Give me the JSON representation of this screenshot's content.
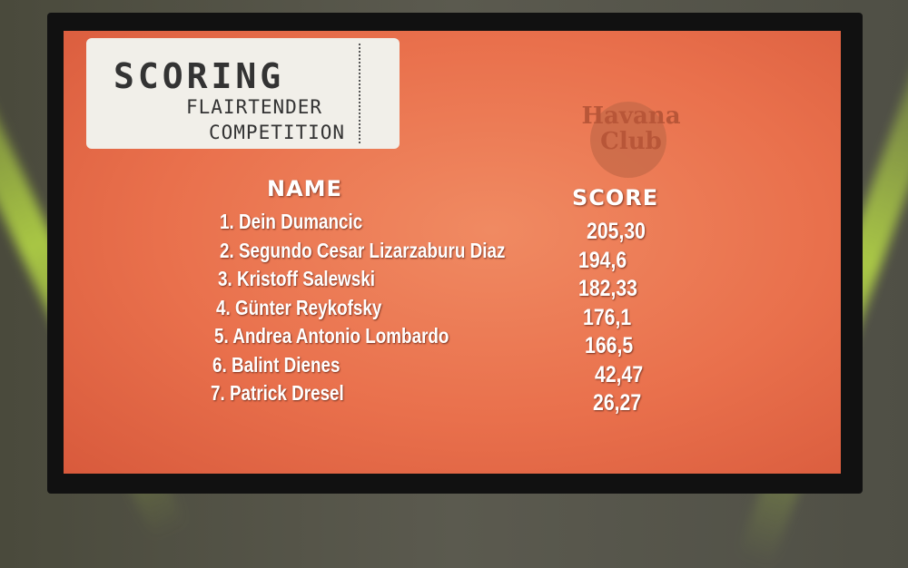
{
  "title": {
    "line1": "SCORING",
    "line2": "FLAIRTENDER",
    "line3": "COMPETITION"
  },
  "logo": {
    "text": "Havana Club"
  },
  "table": {
    "name_header": "NAME",
    "score_header": "SCORE",
    "rows": [
      {
        "rank": "1.",
        "name": "Dein Dumancic",
        "score": "205,30"
      },
      {
        "rank": "2.",
        "name": "Segundo Cesar Lizarzaburu Diaz",
        "score": "194,6"
      },
      {
        "rank": "3.",
        "name": "Kristoff Salewski",
        "score": "182,33"
      },
      {
        "rank": "4.",
        "name": "Günter Reykofsky",
        "score": "176,1"
      },
      {
        "rank": "5.",
        "name": "Andrea Antonio Lombardo",
        "score": "166,5"
      },
      {
        "rank": "6.",
        "name": "Balint Dienes",
        "score": "42,47"
      },
      {
        "rank": "7.",
        "name": "Patrick Dresel",
        "score": "26,27"
      }
    ]
  },
  "colors": {
    "screen": "#e9704c",
    "text": "#ffffff",
    "ticket": "#f1efe9"
  }
}
